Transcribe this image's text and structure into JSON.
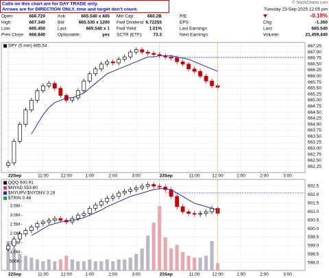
{
  "notes": [
    "Calls on this chart are for DAY TRADE only.",
    "Arrows are for DIRECTION ONLY, time and target don't count."
  ],
  "watermark": "© StockCharts.com",
  "quote": {
    "rows": [
      [
        [
          "Open:",
          "666.720"
        ],
        [
          "Ask:",
          "665.540 x 405"
        ],
        [
          "Mkt Cap:",
          "660.2B"
        ],
        [
          "P/E:"
        ]
      ],
      [
        [
          "High:",
          "667.340"
        ],
        [
          "Bid:",
          "665.530 x 1200"
        ],
        [
          "Fwd Dividend",
          "6.72255"
        ],
        [
          "EPS:"
        ]
      ],
      [
        [
          "Low:",
          "665.450"
        ],
        [
          "Last:",
          "665.540 x 1"
        ],
        [
          "Fwd Yield:",
          "1.01%"
        ],
        [
          "Last Earnings:"
        ]
      ],
      [
        [
          "Prev Close:",
          "666.840"
        ],
        [
          "Optionable:",
          "yes"
        ],
        [
          "SCTR (ETF):",
          "73.3"
        ],
        [
          "Next Earnings:"
        ]
      ]
    ]
  },
  "summary": {
    "timestamp": "Tuesday 23-Sep-2025 12:05 pm",
    "change_pct": "-0.19%",
    "rows": [
      [
        "Chg:",
        "-1.300"
      ],
      [
        "Last:",
        "665.540"
      ],
      [
        "Volume:",
        "21,459,440"
      ]
    ]
  },
  "chart_data": [
    {
      "type": "candlestick",
      "legend": [
        {
          "label": "SPY (5 min) 665.54",
          "color": "#000000"
        }
      ],
      "x": [
        0,
        3,
        6,
        9,
        12,
        15,
        18,
        21,
        24,
        27,
        30,
        33,
        36,
        39,
        42,
        45,
        48,
        51,
        54,
        57,
        60,
        63,
        66,
        69,
        72,
        75,
        78,
        81,
        84,
        87,
        90,
        93,
        96,
        99,
        102,
        105,
        108
      ],
      "open": [
        662.3,
        662.4,
        663.3,
        664.0,
        664.6,
        665.0,
        665.4,
        665.6,
        665.7,
        665.5,
        665.2,
        665.0,
        665.1,
        665.4,
        665.8,
        666.1,
        666.3,
        666.5,
        666.6,
        666.55,
        666.7,
        666.8,
        667.0,
        667.1,
        667.0,
        666.95,
        666.9,
        666.85,
        666.8,
        666.75,
        666.6,
        666.5,
        666.3,
        666.2,
        666.0,
        665.8,
        665.6
      ],
      "high": [
        662.5,
        663.4,
        664.1,
        664.7,
        665.1,
        665.5,
        665.7,
        665.8,
        665.8,
        665.6,
        665.3,
        665.1,
        665.5,
        665.9,
        666.2,
        666.4,
        666.6,
        666.7,
        666.7,
        666.8,
        666.9,
        667.1,
        667.2,
        667.2,
        667.1,
        667.05,
        667.0,
        666.95,
        666.9,
        666.85,
        666.7,
        666.6,
        666.4,
        666.3,
        666.1,
        665.9,
        665.7
      ],
      "low": [
        662.2,
        662.3,
        663.2,
        663.9,
        664.5,
        664.9,
        665.3,
        665.5,
        665.4,
        665.1,
        664.9,
        664.9,
        665.0,
        665.3,
        665.7,
        666.0,
        666.2,
        666.4,
        666.45,
        666.45,
        666.6,
        666.7,
        666.9,
        666.9,
        666.85,
        666.8,
        666.75,
        666.7,
        666.65,
        666.5,
        666.4,
        666.2,
        666.1,
        665.9,
        665.7,
        665.5,
        665.44
      ],
      "close": [
        662.4,
        663.3,
        664.0,
        664.6,
        665.0,
        665.4,
        665.6,
        665.7,
        665.5,
        665.2,
        665.0,
        665.1,
        665.4,
        665.8,
        666.1,
        666.3,
        666.5,
        666.6,
        666.55,
        666.7,
        666.8,
        667.0,
        667.1,
        667.0,
        666.95,
        666.9,
        666.85,
        666.8,
        666.75,
        666.6,
        666.5,
        666.3,
        666.2,
        666.0,
        665.8,
        665.6,
        665.54
      ],
      "up_color": "#000000",
      "down_color": "#cc0000",
      "moving_average": {
        "color": "#2b2b9e",
        "values": [
          null,
          null,
          null,
          null,
          663.6,
          664.0,
          664.4,
          664.7,
          664.9,
          665.0,
          665.1,
          665.1,
          665.2,
          665.3,
          665.5,
          665.7,
          665.9,
          666.1,
          666.2,
          666.3,
          666.4,
          666.5,
          666.6,
          666.7,
          666.8,
          666.8,
          666.85,
          666.85,
          666.85,
          666.8,
          666.75,
          666.7,
          666.6,
          666.5,
          666.4,
          666.3,
          666.2
        ]
      },
      "hline": {
        "value": 666.78,
        "color": "#3344cc"
      },
      "vline_color": "#f0a800",
      "xlim": [
        -3.5,
        153
      ],
      "xticks": [
        {
          "value": 0,
          "label": "22Sep"
        },
        {
          "value": 18,
          "label": "11:00"
        },
        {
          "value": 30,
          "label": "12:00"
        },
        {
          "value": 42,
          "label": "1:00"
        },
        {
          "value": 54,
          "label": "2:00"
        },
        {
          "value": 66,
          "label": "3:00"
        },
        {
          "value": 78,
          "label": "23Sep"
        },
        {
          "value": 96,
          "label": "11:00"
        },
        {
          "value": 108,
          "label": "12:00"
        },
        {
          "value": 120,
          "label": "1:00"
        },
        {
          "value": 132,
          "label": "2:00"
        },
        {
          "value": 144,
          "label": "3:00"
        }
      ],
      "ylim": [
        662.0,
        667.4
      ],
      "yticks": [
        667.25,
        {
          "value": 667,
          "label": "667.00"
        },
        666.75,
        {
          "value": 666.5,
          "label": "666.50"
        },
        666.25,
        {
          "value": 666,
          "label": "666.00"
        },
        665.75,
        {
          "value": 665.5,
          "label": "665.50"
        },
        665.25,
        {
          "value": 665,
          "label": "665.00"
        },
        664.75,
        {
          "value": 664.5,
          "label": "664.50"
        },
        664.25,
        {
          "value": 664,
          "label": "664.00"
        },
        663.75,
        {
          "value": 663.5,
          "label": "663.50"
        },
        663.25,
        {
          "value": 663,
          "label": "663.00"
        },
        662.75,
        {
          "value": 662.5,
          "label": "662.50"
        },
        662.25
      ],
      "grid": true
    },
    {
      "type": "candlestick",
      "legend": [
        {
          "label": "QQQ 600.91",
          "color": "#000000"
        },
        {
          "label": "$NYAD 553.80",
          "color": "#d04080"
        },
        {
          "label": "$NYUPV:$NYDNV 3.19",
          "color": "#2b2b9e"
        },
        {
          "label": "$TRIN 0.48",
          "color": "#20a040"
        }
      ],
      "x": [
        0,
        3,
        6,
        9,
        12,
        15,
        18,
        21,
        24,
        27,
        30,
        33,
        36,
        39,
        42,
        45,
        48,
        51,
        54,
        57,
        60,
        63,
        66,
        69,
        72,
        75,
        78,
        81,
        84,
        87,
        90,
        93,
        96,
        99,
        102,
        105,
        108
      ],
      "open": [
        598.8,
        599.0,
        599.4,
        599.7,
        599.9,
        600.1,
        600.3,
        600.4,
        600.5,
        600.6,
        600.5,
        600.4,
        600.6,
        600.8,
        600.9,
        601.2,
        601.4,
        601.6,
        601.8,
        601.9,
        602.1,
        602.2,
        602.3,
        602.4,
        602.5,
        602.6,
        602.5,
        602.45,
        602.3,
        601.9,
        601.3,
        601.0,
        600.9,
        600.85,
        600.9,
        601.0,
        601.2
      ],
      "high": [
        599.15,
        599.55,
        599.85,
        600.05,
        600.25,
        600.45,
        600.55,
        600.65,
        600.75,
        600.75,
        600.65,
        600.75,
        600.95,
        601.05,
        601.35,
        601.55,
        601.75,
        601.95,
        602.05,
        602.25,
        602.35,
        602.45,
        602.55,
        602.65,
        602.75,
        602.75,
        602.65,
        602.6,
        602.45,
        602.05,
        601.45,
        601.15,
        601.05,
        601.05,
        601.15,
        601.35,
        601.35
      ],
      "low": [
        598.65,
        598.85,
        599.25,
        599.55,
        599.75,
        599.95,
        600.15,
        600.25,
        600.35,
        600.35,
        600.25,
        600.25,
        600.45,
        600.65,
        600.75,
        601.05,
        601.25,
        601.45,
        601.65,
        601.75,
        601.95,
        602.05,
        602.15,
        602.25,
        602.35,
        602.35,
        602.3,
        602.15,
        601.75,
        601.15,
        600.85,
        600.75,
        600.7,
        600.7,
        600.75,
        600.85,
        600.76
      ],
      "close": [
        599.0,
        599.4,
        599.7,
        599.9,
        600.1,
        600.3,
        600.4,
        600.5,
        600.6,
        600.5,
        600.4,
        600.6,
        600.8,
        600.9,
        601.2,
        601.4,
        601.6,
        601.8,
        601.9,
        602.1,
        602.2,
        602.3,
        602.4,
        602.5,
        602.6,
        602.5,
        602.45,
        602.3,
        601.9,
        601.3,
        601.0,
        600.9,
        600.85,
        600.9,
        601.0,
        601.2,
        600.91
      ],
      "up_color": "#000000",
      "down_color": "#cc0000",
      "moving_average": {
        "color": "#2b2b9e",
        "values": [
          null,
          null,
          null,
          null,
          599.6,
          599.8,
          600.0,
          600.2,
          600.3,
          600.4,
          600.45,
          600.5,
          600.55,
          600.65,
          600.8,
          600.95,
          601.1,
          601.3,
          601.45,
          601.6,
          601.75,
          601.9,
          602.0,
          602.1,
          602.2,
          602.3,
          602.35,
          602.35,
          602.3,
          602.1,
          601.9,
          601.7,
          601.5,
          601.4,
          601.3,
          601.2,
          601.1
        ]
      },
      "hline": {
        "value": 602.1,
        "color": "#3344cc"
      },
      "vline_color": "#f0a800",
      "volume": {
        "values": [
          1600000,
          1200000,
          900000,
          800000,
          700000,
          600000,
          500000,
          600000,
          500000,
          600000,
          800000,
          600000,
          500000,
          500000,
          600000,
          500000,
          500000,
          600000,
          500000,
          600000,
          600000,
          700000,
          900000,
          1200000,
          1900000,
          2600000,
          3500000,
          1800000,
          1200000,
          1400000,
          1000000,
          800000,
          700000,
          700000,
          800000,
          1600000,
          400000
        ],
        "up_color": "#b8b8c4",
        "down_color": "#e8a6ae",
        "ylim": [
          0,
          4950000
        ],
        "yticks": [
          {
            "value": 3500000,
            "label": "3.5M"
          },
          {
            "value": 3000000,
            "label": "3.0M"
          },
          {
            "value": 2500000,
            "label": "2.5M"
          },
          {
            "value": 2000000,
            "label": "2.0M"
          },
          {
            "value": 1500000,
            "label": "1.5M"
          },
          {
            "value": 1000000,
            "label": "1.0M"
          },
          {
            "value": 500000,
            "label": "500K"
          }
        ]
      },
      "xlim": [
        -3.5,
        153
      ],
      "xticks": [
        {
          "value": 0,
          "label": "22Sep"
        },
        {
          "value": 18,
          "label": "11:00"
        },
        {
          "value": 30,
          "label": "12:00"
        },
        {
          "value": 42,
          "label": "1:00"
        },
        {
          "value": 54,
          "label": "2:00"
        },
        {
          "value": 66,
          "label": "3:00"
        },
        {
          "value": 78,
          "label": "23Sep"
        },
        {
          "value": 96,
          "label": "11:00"
        },
        {
          "value": 108,
          "label": "12:00"
        },
        {
          "value": 120,
          "label": "1:00"
        },
        {
          "value": 132,
          "label": "2:00"
        },
        {
          "value": 144,
          "label": "3:00"
        }
      ],
      "ylim": [
        597.55,
        602.9
      ],
      "yticks": [
        602.5,
        {
          "value": 602,
          "label": "602.0"
        },
        601.5,
        {
          "value": 601,
          "label": "601.0"
        },
        600.5,
        {
          "value": 600,
          "label": "600.0"
        },
        599.5,
        {
          "value": 599,
          "label": "599.0"
        },
        598.5,
        {
          "value": 598,
          "label": "598.0"
        }
      ],
      "grid": true
    }
  ]
}
